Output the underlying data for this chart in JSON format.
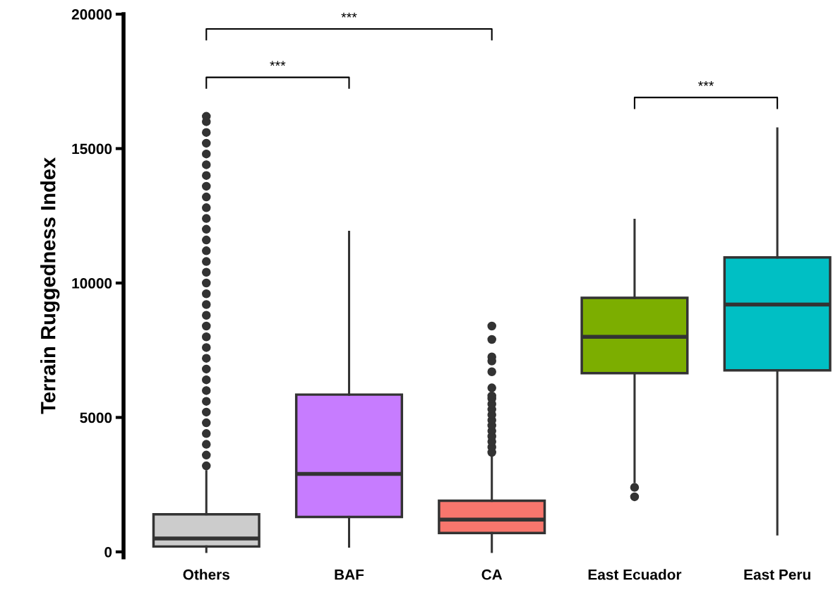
{
  "chart_data": {
    "type": "box",
    "ylabel": "Terrain Ruggedness Index",
    "categories": [
      "Others",
      "BAF",
      "CA",
      "East Ecuador",
      "East Peru"
    ],
    "colors": [
      "#cccccc",
      "#c77cff",
      "#f8766d",
      "#7cae00",
      "#00bfc4"
    ],
    "boxes": [
      {
        "low": 0,
        "q1": 200,
        "median": 500,
        "q3": 1400,
        "high": 3000,
        "outliers": [
          3200,
          3600,
          4000,
          4400,
          4800,
          5200,
          5600,
          6000,
          6400,
          6800,
          7200,
          7600,
          8000,
          8400,
          8800,
          9200,
          9600,
          10000,
          10400,
          10800,
          11200,
          11600,
          12000,
          12400,
          12800,
          13200,
          13600,
          14000,
          14400,
          14800,
          15200,
          15600,
          16000,
          16200
        ]
      },
      {
        "low": 200,
        "q1": 1300,
        "median": 2900,
        "q3": 5850,
        "high": 11900
      },
      {
        "low": 0,
        "q1": 700,
        "median": 1200,
        "q3": 1900,
        "high": 3600,
        "outliers": [
          3700,
          3900,
          4100,
          4300,
          4500,
          4700,
          4900,
          5100,
          5300,
          5500,
          5700,
          5800,
          6100,
          6700,
          7100,
          7250,
          7900,
          8400
        ]
      },
      {
        "low": 2600,
        "q1": 6650,
        "median": 8000,
        "q3": 9450,
        "high": 12350,
        "outliers": [
          2050,
          2400
        ]
      },
      {
        "low": 650,
        "q1": 6750,
        "median": 9200,
        "q3": 10950,
        "high": 15750
      }
    ],
    "ylim": [
      -200,
      20000
    ],
    "yticks": [
      0,
      5000,
      10000,
      15000,
      20000
    ],
    "grid": false,
    "annotations": [
      "***",
      "***",
      "***"
    ]
  }
}
